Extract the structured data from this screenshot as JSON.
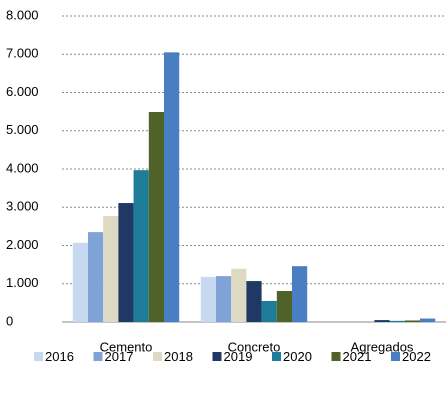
{
  "chart_data": {
    "type": "bar",
    "categories": [
      "Cemento",
      "Concreto",
      "Agregados"
    ],
    "series": [
      {
        "name": "2016",
        "color": "#c6d9f0",
        "values": [
          2070,
          1180,
          0
        ]
      },
      {
        "name": "2017",
        "color": "#7fa3d6",
        "values": [
          2350,
          1200,
          0
        ]
      },
      {
        "name": "2018",
        "color": "#ddd9c3",
        "values": [
          2770,
          1390,
          0
        ]
      },
      {
        "name": "2019",
        "color": "#1f3864",
        "values": [
          3110,
          1070,
          50
        ]
      },
      {
        "name": "2020",
        "color": "#1f7c99",
        "values": [
          3970,
          550,
          30
        ]
      },
      {
        "name": "2021",
        "color": "#4f6228",
        "values": [
          5490,
          810,
          40
        ]
      },
      {
        "name": "2022",
        "color": "#4a7ec2",
        "values": [
          7050,
          1460,
          90
        ]
      }
    ],
    "ylim": [
      0,
      8000
    ],
    "yticks": [
      0,
      {
        "value": 1000,
        "label": "1.000"
      },
      {
        "value": 2000,
        "label": "2.000"
      },
      {
        "value": 3000,
        "label": "3.000"
      },
      {
        "value": 4000,
        "label": "4.000"
      },
      {
        "value": 5000,
        "label": "5.000"
      },
      {
        "value": 6000,
        "label": "6.000"
      },
      {
        "value": 7000,
        "label": "7.000"
      },
      {
        "value": 8000,
        "label": "8.000"
      }
    ],
    "grid": true,
    "legend": "bottom"
  }
}
